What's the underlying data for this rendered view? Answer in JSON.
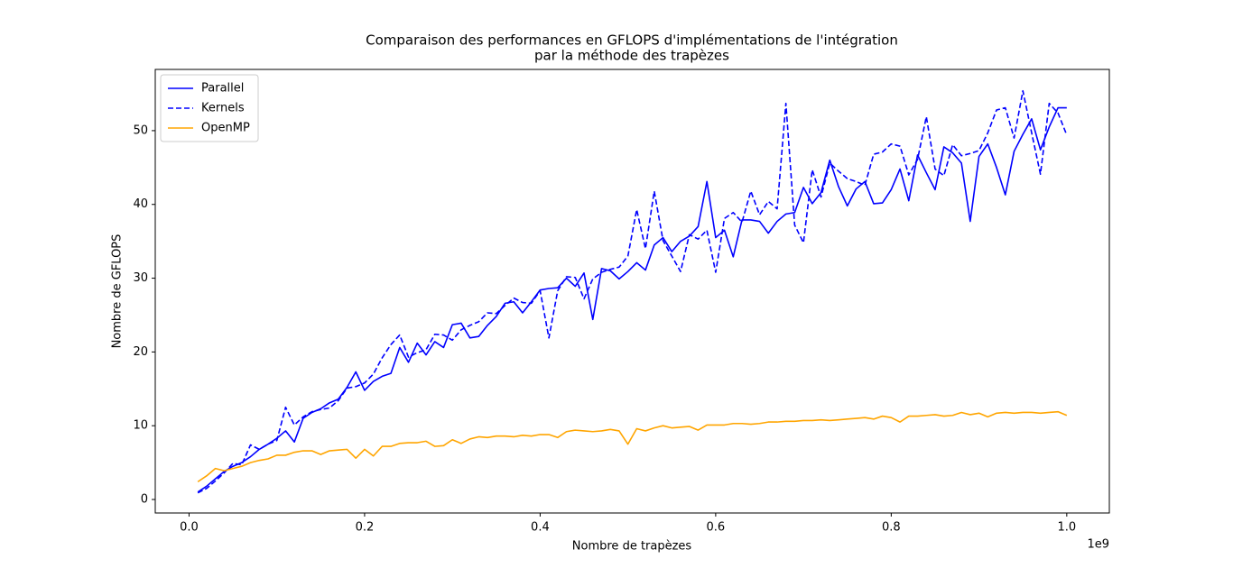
{
  "chart_data": {
    "type": "line",
    "title": [
      "Comparaison des performances en GFLOPS d'implémentations de l'intégration",
      "par la méthode des trapèzes"
    ],
    "x_label": "Nombre de trapèzes",
    "y_label": "Nombre de GFLOPS",
    "x_offset_label": "1e9",
    "x": [
      0.01,
      0.02,
      0.03,
      0.04,
      0.05,
      0.06,
      0.07,
      0.08,
      0.09,
      0.1,
      0.11,
      0.12,
      0.13,
      0.14,
      0.15,
      0.16,
      0.17,
      0.18,
      0.19,
      0.2,
      0.21,
      0.22,
      0.23,
      0.24,
      0.25,
      0.26,
      0.27,
      0.28,
      0.29,
      0.3,
      0.31,
      0.32,
      0.33,
      0.34,
      0.35,
      0.36,
      0.37,
      0.38,
      0.39,
      0.4,
      0.41,
      0.42,
      0.43,
      0.44,
      0.45,
      0.46,
      0.47,
      0.48,
      0.49,
      0.5,
      0.51,
      0.52,
      0.53,
      0.54,
      0.55,
      0.56,
      0.57,
      0.58,
      0.59,
      0.6,
      0.61,
      0.62,
      0.63,
      0.64,
      0.65,
      0.66,
      0.67,
      0.68,
      0.69,
      0.7,
      0.71,
      0.72,
      0.73,
      0.74,
      0.75,
      0.76,
      0.77,
      0.78,
      0.79,
      0.8,
      0.81,
      0.82,
      0.83,
      0.84,
      0.85,
      0.86,
      0.87,
      0.88,
      0.89,
      0.9,
      0.91,
      0.92,
      0.93,
      0.94,
      0.95,
      0.96,
      0.97,
      0.98,
      0.99,
      1.0
    ],
    "series": [
      {
        "name": "Parallel",
        "color": "#0000ff",
        "dash": "solid",
        "values": [
          1.0,
          1.8,
          2.8,
          3.8,
          4.5,
          5.0,
          5.8,
          6.8,
          7.5,
          8.3,
          9.3,
          7.8,
          11.0,
          11.8,
          12.3,
          13.1,
          13.6,
          15.2,
          17.3,
          14.8,
          16.0,
          16.7,
          17.1,
          20.6,
          18.6,
          21.2,
          19.6,
          21.4,
          20.6,
          23.7,
          23.9,
          21.9,
          22.1,
          23.6,
          24.8,
          26.6,
          26.8,
          25.3,
          26.8,
          28.4,
          28.6,
          28.7,
          30.0,
          28.9,
          30.7,
          24.4,
          31.3,
          31.0,
          29.9,
          30.9,
          32.1,
          31.1,
          34.5,
          35.5,
          33.6,
          35.0,
          35.7,
          37.0,
          43.1,
          35.5,
          36.5,
          32.9,
          37.9,
          37.9,
          37.7,
          36.1,
          37.7,
          38.7,
          38.9,
          42.3,
          40.1,
          41.6,
          46.0,
          42.4,
          39.8,
          42.1,
          43.1,
          40.1,
          40.2,
          42.0,
          44.8,
          40.5,
          46.7,
          44.3,
          42.0,
          47.8,
          47.0,
          45.6,
          37.7,
          46.5,
          48.2,
          45.0,
          41.3,
          47.2,
          49.5,
          51.6,
          47.4,
          50.5,
          53.1,
          53.1
        ]
      },
      {
        "name": "Kernels",
        "color": "#0000ff",
        "dash": "dashed",
        "values": [
          0.9,
          1.5,
          2.5,
          3.6,
          4.9,
          4.7,
          7.4,
          6.8,
          7.5,
          8.0,
          12.5,
          10.1,
          11.2,
          11.9,
          12.2,
          12.4,
          13.4,
          15.1,
          15.3,
          15.8,
          17.0,
          19.2,
          21.0,
          22.3,
          19.3,
          19.9,
          20.3,
          22.4,
          22.3,
          21.6,
          23.0,
          23.6,
          24.1,
          25.3,
          25.2,
          26.3,
          27.3,
          26.7,
          26.6,
          28.3,
          21.9,
          28.3,
          30.2,
          30.1,
          27.2,
          29.9,
          30.8,
          31.2,
          31.5,
          33.0,
          39.3,
          34.0,
          41.8,
          35.1,
          33.0,
          30.9,
          35.9,
          35.3,
          36.5,
          30.8,
          38.1,
          38.9,
          37.6,
          41.8,
          38.6,
          40.4,
          39.4,
          53.7,
          37.2,
          34.8,
          44.7,
          41.0,
          45.6,
          44.5,
          43.5,
          43.1,
          42.6,
          46.8,
          47.1,
          48.2,
          47.9,
          44.0,
          46.1,
          51.9,
          44.8,
          43.9,
          48.1,
          46.6,
          46.9,
          47.3,
          49.7,
          52.8,
          53.1,
          49.0,
          55.4,
          49.7,
          44.1,
          53.7,
          52.4,
          49.4
        ]
      },
      {
        "name": "OpenMP",
        "color": "#ffa500",
        "dash": "solid",
        "values": [
          2.4,
          3.2,
          4.2,
          3.9,
          4.2,
          4.5,
          5.0,
          5.3,
          5.5,
          6.0,
          6.0,
          6.4,
          6.6,
          6.6,
          6.1,
          6.6,
          6.7,
          6.8,
          5.6,
          6.8,
          5.9,
          7.2,
          7.2,
          7.6,
          7.7,
          7.7,
          7.9,
          7.2,
          7.3,
          8.1,
          7.6,
          8.2,
          8.5,
          8.4,
          8.6,
          8.6,
          8.5,
          8.7,
          8.6,
          8.8,
          8.8,
          8.4,
          9.2,
          9.4,
          9.3,
          9.2,
          9.3,
          9.5,
          9.3,
          7.5,
          9.6,
          9.3,
          9.7,
          10.0,
          9.7,
          9.8,
          9.9,
          9.4,
          10.1,
          10.1,
          10.1,
          10.3,
          10.3,
          10.2,
          10.3,
          10.5,
          10.5,
          10.6,
          10.6,
          10.7,
          10.7,
          10.8,
          10.7,
          10.8,
          10.9,
          11.0,
          11.1,
          10.9,
          11.3,
          11.1,
          10.5,
          11.3,
          11.3,
          11.4,
          11.5,
          11.3,
          11.4,
          11.8,
          11.5,
          11.7,
          11.2,
          11.7,
          11.8,
          11.7,
          11.8,
          11.8,
          11.7,
          11.8,
          11.9,
          11.4
        ]
      }
    ],
    "xlim": [
      -0.0385,
      1.0485
    ],
    "ylim": [
      -1.83,
      58.3
    ],
    "xticks": [
      {
        "value": 0,
        "label": "0.0"
      },
      0.2,
      0.4,
      0.6,
      0.8,
      {
        "value": 1,
        "label": "1.0"
      }
    ],
    "yticks": [
      0,
      10,
      20,
      30,
      40,
      50
    ],
    "grid": false,
    "legend": "upper-left"
  }
}
